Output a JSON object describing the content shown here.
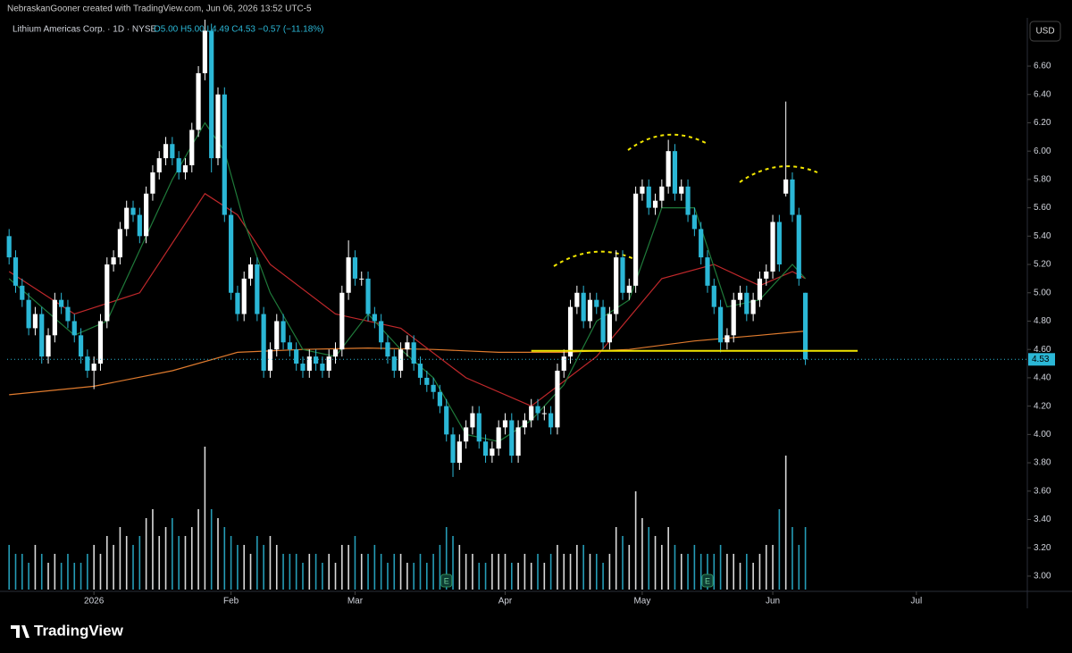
{
  "header": {
    "credit": "NebraskanGooner created with TradingView.com, Jun 06, 2026 13:52 UTC-5"
  },
  "legend": {
    "symbol": "Lithium Americas Corp. · 1D · NYSE",
    "ohlc": "O5.00 H5.00 L4.49 C4.53 −0.57 (−11.18%)"
  },
  "currency": "USD",
  "brand": "TradingView",
  "chart_data": {
    "type": "candlestick",
    "up_color": "#ffffff",
    "down_color": "#2bb7d6",
    "open": [
      5.4,
      5.25,
      5.05,
      4.95,
      4.75,
      4.85,
      4.55,
      4.7,
      4.95,
      4.9,
      4.8,
      4.7,
      4.55,
      4.45,
      4.5,
      4.8,
      5.2,
      5.25,
      5.45,
      5.6,
      5.55,
      5.4,
      5.7,
      5.85,
      5.95,
      6.05,
      5.95,
      5.85,
      5.9,
      6.15,
      6.55,
      6.85,
      5.95,
      6.4,
      5.55,
      5.0,
      4.85,
      5.1,
      5.2,
      4.85,
      4.45,
      4.6,
      4.8,
      4.65,
      4.6,
      4.5,
      4.45,
      4.55,
      4.5,
      4.45,
      4.55,
      4.6,
      5.0,
      5.25,
      5.1,
      5.1,
      4.85,
      4.8,
      4.65,
      4.55,
      4.45,
      4.6,
      4.65,
      4.5,
      4.4,
      4.35,
      4.3,
      4.2,
      4.0,
      3.8,
      3.95,
      4.05,
      4.15,
      3.95,
      3.85,
      3.9,
      4.05,
      4.1,
      3.85,
      4.05,
      4.1,
      4.2,
      4.15,
      4.15,
      4.05,
      4.45,
      4.55,
      4.9,
      5.0,
      4.8,
      4.95,
      4.9,
      4.65,
      4.85,
      5.25,
      5.0,
      5.05,
      5.7,
      5.75,
      5.6,
      5.65,
      5.75,
      6.0,
      5.7,
      5.75,
      5.55,
      5.45,
      5.25,
      5.05,
      4.9,
      4.65,
      4.7,
      4.95,
      5.0,
      4.85,
      4.95,
      5.1,
      5.15,
      5.5,
      5.7,
      5.8,
      5.55,
      5.0
    ],
    "high": [
      5.45,
      5.3,
      5.1,
      5.0,
      4.9,
      4.9,
      4.75,
      5.0,
      5.0,
      4.95,
      4.85,
      4.75,
      4.6,
      4.55,
      4.85,
      5.25,
      5.3,
      5.5,
      5.65,
      5.65,
      5.6,
      5.75,
      5.9,
      6.0,
      6.1,
      6.1,
      6.0,
      5.95,
      6.2,
      6.6,
      6.95,
      6.9,
      6.45,
      6.45,
      5.6,
      5.05,
      5.15,
      5.25,
      5.25,
      4.9,
      4.65,
      4.85,
      4.85,
      4.7,
      4.65,
      4.55,
      4.6,
      4.6,
      4.55,
      4.6,
      4.65,
      5.05,
      5.37,
      5.3,
      5.15,
      5.15,
      4.9,
      4.85,
      4.7,
      4.6,
      4.65,
      4.7,
      4.7,
      4.55,
      4.45,
      4.4,
      4.35,
      4.25,
      4.05,
      4.0,
      4.1,
      4.2,
      4.2,
      4.0,
      3.95,
      4.1,
      4.15,
      4.15,
      4.1,
      4.15,
      4.25,
      4.25,
      4.2,
      4.2,
      4.5,
      4.6,
      4.95,
      5.05,
      5.05,
      5.0,
      5.0,
      4.95,
      4.9,
      5.3,
      5.3,
      5.1,
      5.75,
      5.8,
      5.8,
      5.7,
      5.8,
      6.08,
      6.05,
      5.8,
      5.8,
      5.6,
      5.5,
      5.3,
      5.1,
      4.95,
      4.75,
      5.0,
      5.05,
      5.05,
      5.0,
      5.15,
      5.2,
      5.55,
      5.55,
      6.35,
      5.85,
      5.6,
      5.0
    ],
    "low": [
      5.2,
      5.0,
      4.9,
      4.7,
      4.7,
      4.5,
      4.5,
      4.65,
      4.85,
      4.75,
      4.65,
      4.5,
      4.4,
      4.32,
      4.45,
      4.75,
      5.15,
      5.2,
      5.4,
      5.5,
      5.35,
      5.35,
      5.65,
      5.8,
      5.9,
      5.9,
      5.8,
      5.8,
      5.85,
      6.1,
      6.5,
      5.85,
      5.9,
      5.5,
      4.95,
      4.8,
      4.8,
      5.05,
      4.8,
      4.4,
      4.4,
      4.55,
      4.6,
      4.55,
      4.45,
      4.4,
      4.4,
      4.45,
      4.4,
      4.4,
      4.5,
      4.55,
      4.95,
      5.05,
      5.05,
      4.8,
      4.75,
      4.6,
      4.5,
      4.4,
      4.4,
      4.55,
      4.45,
      4.35,
      4.3,
      4.25,
      4.15,
      3.95,
      3.7,
      3.75,
      3.9,
      4.0,
      3.9,
      3.8,
      3.8,
      3.85,
      4.0,
      3.8,
      3.8,
      4.0,
      4.05,
      4.1,
      4.1,
      4.0,
      4.0,
      4.4,
      4.5,
      4.85,
      4.75,
      4.75,
      4.85,
      4.6,
      4.6,
      4.8,
      4.95,
      4.95,
      5.0,
      5.65,
      5.55,
      5.55,
      5.6,
      5.7,
      5.65,
      5.65,
      5.5,
      5.4,
      5.2,
      5.0,
      4.85,
      4.58,
      4.6,
      4.65,
      4.9,
      4.8,
      4.8,
      4.9,
      5.05,
      5.1,
      5.15,
      5.68,
      5.5,
      5.05,
      4.49
    ],
    "close": [
      5.25,
      5.05,
      4.95,
      4.75,
      4.85,
      4.55,
      4.7,
      4.95,
      4.9,
      4.8,
      4.7,
      4.55,
      4.45,
      4.5,
      4.8,
      5.2,
      5.25,
      5.45,
      5.6,
      5.55,
      5.4,
      5.7,
      5.85,
      5.95,
      6.05,
      5.95,
      5.85,
      5.9,
      6.15,
      6.55,
      6.85,
      5.95,
      6.4,
      5.55,
      5.0,
      4.85,
      5.1,
      5.2,
      4.85,
      4.45,
      4.6,
      4.8,
      4.65,
      4.6,
      4.5,
      4.45,
      4.55,
      4.5,
      4.45,
      4.55,
      4.6,
      5.0,
      5.25,
      5.1,
      5.1,
      4.85,
      4.8,
      4.65,
      4.55,
      4.45,
      4.6,
      4.65,
      4.5,
      4.4,
      4.35,
      4.3,
      4.2,
      4.0,
      3.8,
      3.95,
      4.05,
      4.15,
      3.95,
      3.85,
      3.9,
      4.05,
      4.1,
      3.85,
      4.05,
      4.1,
      4.2,
      4.15,
      4.15,
      4.05,
      4.45,
      4.55,
      4.9,
      5.0,
      4.8,
      4.95,
      4.9,
      4.65,
      4.85,
      5.25,
      5.0,
      5.05,
      5.7,
      5.75,
      5.6,
      5.65,
      5.75,
      6.0,
      5.7,
      5.75,
      5.55,
      5.45,
      5.25,
      5.05,
      4.9,
      4.65,
      4.7,
      4.95,
      5.0,
      4.85,
      4.95,
      5.1,
      5.15,
      5.5,
      5.2,
      5.8,
      5.55,
      5.1,
      4.53
    ],
    "volume": [
      5,
      4,
      4,
      3,
      5,
      4,
      3,
      4,
      3,
      4,
      3,
      3,
      4,
      5,
      4,
      6,
      5,
      7,
      6,
      5,
      6,
      8,
      9,
      6,
      7,
      8,
      6,
      6,
      7,
      9,
      16,
      9,
      8,
      7,
      6,
      5,
      5,
      4,
      6,
      5,
      6,
      5,
      4,
      4,
      4,
      3,
      4,
      4,
      3,
      4,
      3,
      5,
      5,
      6,
      4,
      4,
      5,
      4,
      3,
      4,
      4,
      3,
      3,
      4,
      3,
      4,
      5,
      7,
      6,
      5,
      4,
      4,
      3,
      3,
      4,
      4,
      4,
      3,
      3,
      4,
      3,
      4,
      3,
      4,
      5,
      4,
      4,
      5,
      5,
      4,
      4,
      3,
      4,
      7,
      6,
      5,
      11,
      8,
      7,
      6,
      5,
      7,
      5,
      4,
      4,
      5,
      4,
      4,
      4,
      5,
      4,
      4,
      3,
      4,
      3,
      4,
      5,
      5,
      9,
      15,
      7,
      5,
      7
    ],
    "xlim": [
      -0.3,
      156
    ],
    "xticks": [
      {
        "value": 13,
        "label": "2026"
      },
      {
        "value": 34,
        "label": "Feb"
      },
      {
        "value": 53,
        "label": "Mar"
      },
      {
        "value": 76,
        "label": "Apr"
      },
      {
        "value": 97,
        "label": "May"
      },
      {
        "value": 117,
        "label": "Jun"
      },
      {
        "value": 139,
        "label": "Jul"
      }
    ],
    "ylim": [
      2.905,
      6.928
    ],
    "yticks": [
      {
        "value": 3.0,
        "label": "3.00"
      },
      {
        "value": 3.2,
        "label": "3.20"
      },
      {
        "value": 3.4,
        "label": "3.40"
      },
      {
        "value": 3.6,
        "label": "3.60"
      },
      {
        "value": 3.8,
        "label": "3.80"
      },
      {
        "value": 4.0,
        "label": "4.00"
      },
      {
        "value": 4.2,
        "label": "4.20"
      },
      {
        "value": 4.4,
        "label": "4.40"
      },
      {
        "value": 4.6,
        "label": "4.60"
      },
      {
        "value": 4.8,
        "label": "4.80"
      },
      {
        "value": 5.0,
        "label": "5.00"
      },
      {
        "value": 5.2,
        "label": "5.20"
      },
      {
        "value": 5.4,
        "label": "5.40"
      },
      {
        "value": 5.6,
        "label": "5.60"
      },
      {
        "value": 5.8,
        "label": "5.80"
      },
      {
        "value": 6.0,
        "label": "6.00"
      },
      {
        "value": 6.2,
        "label": "6.20"
      },
      {
        "value": 6.4,
        "label": "6.40"
      },
      {
        "value": 6.6,
        "label": "6.60"
      }
    ],
    "grid": false,
    "moving_averages": [
      {
        "color": "#e07b2e",
        "x": [
          0,
          13,
          25,
          35,
          45,
          55,
          65,
          75,
          85,
          95,
          105,
          115,
          122
        ],
        "values": [
          4.28,
          4.34,
          4.45,
          4.58,
          4.6,
          4.61,
          4.6,
          4.58,
          4.58,
          4.6,
          4.66,
          4.7,
          4.73
        ]
      },
      {
        "color": "#c0282b",
        "x": [
          0,
          10,
          20,
          30,
          35,
          40,
          50,
          60,
          70,
          80,
          90,
          100,
          108,
          115,
          120,
          122
        ],
        "values": [
          5.15,
          4.85,
          5.0,
          5.7,
          5.55,
          5.2,
          4.85,
          4.75,
          4.4,
          4.2,
          4.55,
          5.1,
          5.2,
          5.05,
          5.15,
          5.1
        ]
      },
      {
        "color": "#1f7a3a",
        "x": [
          0,
          10,
          15,
          20,
          25,
          30,
          33,
          36,
          40,
          45,
          50,
          55,
          60,
          65,
          70,
          75,
          80,
          85,
          90,
          95,
          100,
          105,
          110,
          115,
          120,
          122
        ],
        "values": [
          5.1,
          4.7,
          4.8,
          5.3,
          5.8,
          6.2,
          6.0,
          5.5,
          5.0,
          4.6,
          4.55,
          4.85,
          4.6,
          4.4,
          4.0,
          3.95,
          4.1,
          4.35,
          4.8,
          4.95,
          5.6,
          5.6,
          4.9,
          4.95,
          5.2,
          5.1
        ]
      }
    ],
    "support": {
      "value": 4.59,
      "x": [
        80,
        130
      ],
      "color": "#f2e600"
    },
    "earnings": {
      "x": [
        67,
        107
      ],
      "label": "E"
    }
  }
}
